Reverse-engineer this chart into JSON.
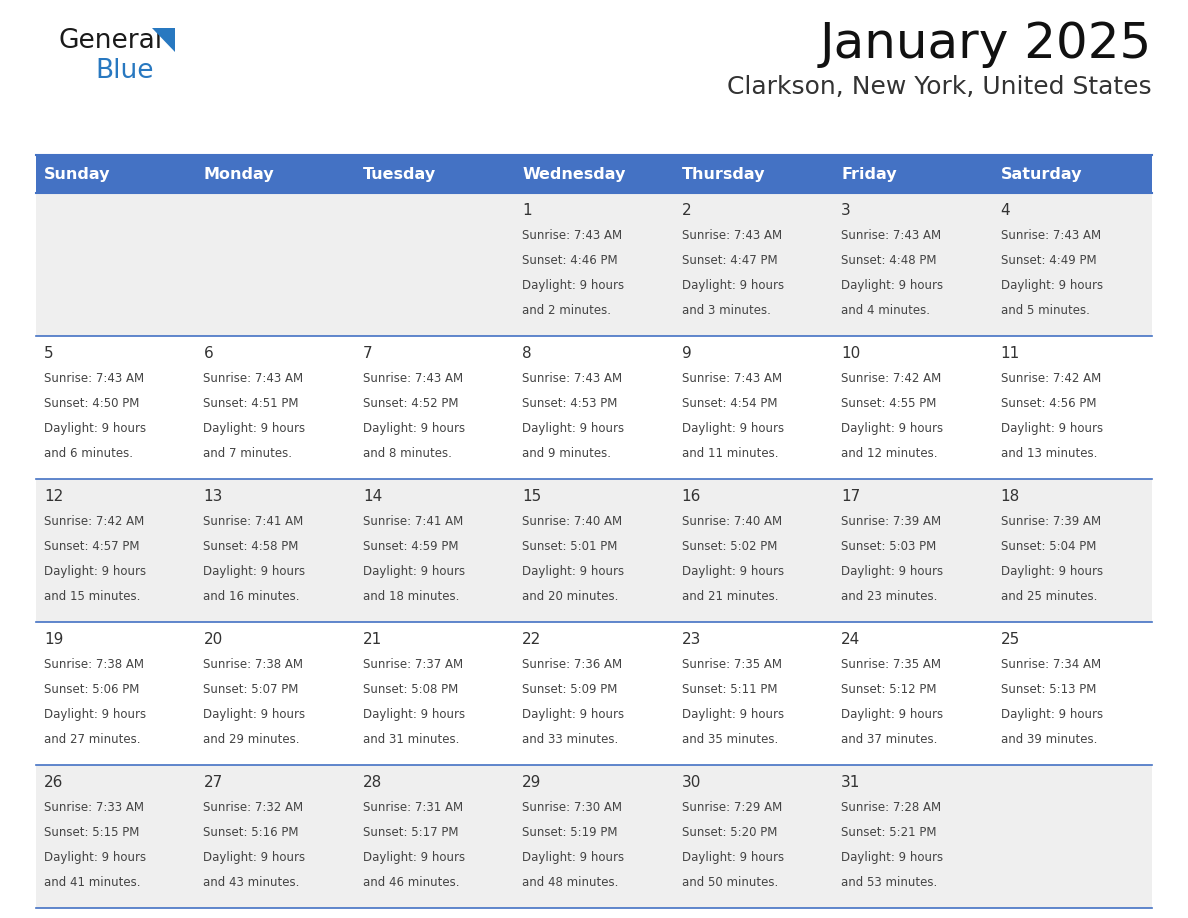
{
  "title": "January 2025",
  "subtitle": "Clarkson, New York, United States",
  "days_of_week": [
    "Sunday",
    "Monday",
    "Tuesday",
    "Wednesday",
    "Thursday",
    "Friday",
    "Saturday"
  ],
  "header_bg": "#4472C4",
  "header_text": "#FFFFFF",
  "row_bg_odd": "#EFEFEF",
  "row_bg_even": "#FFFFFF",
  "cell_text_color": "#444444",
  "day_num_color": "#333333",
  "border_color": "#4472C4",
  "calendar_data": [
    [
      {
        "day": "",
        "sunrise": "",
        "sunset": "",
        "daylight": ""
      },
      {
        "day": "",
        "sunrise": "",
        "sunset": "",
        "daylight": ""
      },
      {
        "day": "",
        "sunrise": "",
        "sunset": "",
        "daylight": ""
      },
      {
        "day": "1",
        "sunrise": "7:43 AM",
        "sunset": "4:46 PM",
        "daylight_h": "9 hours",
        "daylight_m": "and 2 minutes."
      },
      {
        "day": "2",
        "sunrise": "7:43 AM",
        "sunset": "4:47 PM",
        "daylight_h": "9 hours",
        "daylight_m": "and 3 minutes."
      },
      {
        "day": "3",
        "sunrise": "7:43 AM",
        "sunset": "4:48 PM",
        "daylight_h": "9 hours",
        "daylight_m": "and 4 minutes."
      },
      {
        "day": "4",
        "sunrise": "7:43 AM",
        "sunset": "4:49 PM",
        "daylight_h": "9 hours",
        "daylight_m": "and 5 minutes."
      }
    ],
    [
      {
        "day": "5",
        "sunrise": "7:43 AM",
        "sunset": "4:50 PM",
        "daylight_h": "9 hours",
        "daylight_m": "and 6 minutes."
      },
      {
        "day": "6",
        "sunrise": "7:43 AM",
        "sunset": "4:51 PM",
        "daylight_h": "9 hours",
        "daylight_m": "and 7 minutes."
      },
      {
        "day": "7",
        "sunrise": "7:43 AM",
        "sunset": "4:52 PM",
        "daylight_h": "9 hours",
        "daylight_m": "and 8 minutes."
      },
      {
        "day": "8",
        "sunrise": "7:43 AM",
        "sunset": "4:53 PM",
        "daylight_h": "9 hours",
        "daylight_m": "and 9 minutes."
      },
      {
        "day": "9",
        "sunrise": "7:43 AM",
        "sunset": "4:54 PM",
        "daylight_h": "9 hours",
        "daylight_m": "and 11 minutes."
      },
      {
        "day": "10",
        "sunrise": "7:42 AM",
        "sunset": "4:55 PM",
        "daylight_h": "9 hours",
        "daylight_m": "and 12 minutes."
      },
      {
        "day": "11",
        "sunrise": "7:42 AM",
        "sunset": "4:56 PM",
        "daylight_h": "9 hours",
        "daylight_m": "and 13 minutes."
      }
    ],
    [
      {
        "day": "12",
        "sunrise": "7:42 AM",
        "sunset": "4:57 PM",
        "daylight_h": "9 hours",
        "daylight_m": "and 15 minutes."
      },
      {
        "day": "13",
        "sunrise": "7:41 AM",
        "sunset": "4:58 PM",
        "daylight_h": "9 hours",
        "daylight_m": "and 16 minutes."
      },
      {
        "day": "14",
        "sunrise": "7:41 AM",
        "sunset": "4:59 PM",
        "daylight_h": "9 hours",
        "daylight_m": "and 18 minutes."
      },
      {
        "day": "15",
        "sunrise": "7:40 AM",
        "sunset": "5:01 PM",
        "daylight_h": "9 hours",
        "daylight_m": "and 20 minutes."
      },
      {
        "day": "16",
        "sunrise": "7:40 AM",
        "sunset": "5:02 PM",
        "daylight_h": "9 hours",
        "daylight_m": "and 21 minutes."
      },
      {
        "day": "17",
        "sunrise": "7:39 AM",
        "sunset": "5:03 PM",
        "daylight_h": "9 hours",
        "daylight_m": "and 23 minutes."
      },
      {
        "day": "18",
        "sunrise": "7:39 AM",
        "sunset": "5:04 PM",
        "daylight_h": "9 hours",
        "daylight_m": "and 25 minutes."
      }
    ],
    [
      {
        "day": "19",
        "sunrise": "7:38 AM",
        "sunset": "5:06 PM",
        "daylight_h": "9 hours",
        "daylight_m": "and 27 minutes."
      },
      {
        "day": "20",
        "sunrise": "7:38 AM",
        "sunset": "5:07 PM",
        "daylight_h": "9 hours",
        "daylight_m": "and 29 minutes."
      },
      {
        "day": "21",
        "sunrise": "7:37 AM",
        "sunset": "5:08 PM",
        "daylight_h": "9 hours",
        "daylight_m": "and 31 minutes."
      },
      {
        "day": "22",
        "sunrise": "7:36 AM",
        "sunset": "5:09 PM",
        "daylight_h": "9 hours",
        "daylight_m": "and 33 minutes."
      },
      {
        "day": "23",
        "sunrise": "7:35 AM",
        "sunset": "5:11 PM",
        "daylight_h": "9 hours",
        "daylight_m": "and 35 minutes."
      },
      {
        "day": "24",
        "sunrise": "7:35 AM",
        "sunset": "5:12 PM",
        "daylight_h": "9 hours",
        "daylight_m": "and 37 minutes."
      },
      {
        "day": "25",
        "sunrise": "7:34 AM",
        "sunset": "5:13 PM",
        "daylight_h": "9 hours",
        "daylight_m": "and 39 minutes."
      }
    ],
    [
      {
        "day": "26",
        "sunrise": "7:33 AM",
        "sunset": "5:15 PM",
        "daylight_h": "9 hours",
        "daylight_m": "and 41 minutes."
      },
      {
        "day": "27",
        "sunrise": "7:32 AM",
        "sunset": "5:16 PM",
        "daylight_h": "9 hours",
        "daylight_m": "and 43 minutes."
      },
      {
        "day": "28",
        "sunrise": "7:31 AM",
        "sunset": "5:17 PM",
        "daylight_h": "9 hours",
        "daylight_m": "and 46 minutes."
      },
      {
        "day": "29",
        "sunrise": "7:30 AM",
        "sunset": "5:19 PM",
        "daylight_h": "9 hours",
        "daylight_m": "and 48 minutes."
      },
      {
        "day": "30",
        "sunrise": "7:29 AM",
        "sunset": "5:20 PM",
        "daylight_h": "9 hours",
        "daylight_m": "and 50 minutes."
      },
      {
        "day": "31",
        "sunrise": "7:28 AM",
        "sunset": "5:21 PM",
        "daylight_h": "9 hours",
        "daylight_m": "and 53 minutes."
      },
      {
        "day": "",
        "sunrise": "",
        "sunset": "",
        "daylight_h": "",
        "daylight_m": ""
      }
    ]
  ],
  "logo_general_color": "#1a1a1a",
  "logo_blue_color": "#2878C0",
  "logo_triangle_color": "#2878C0"
}
